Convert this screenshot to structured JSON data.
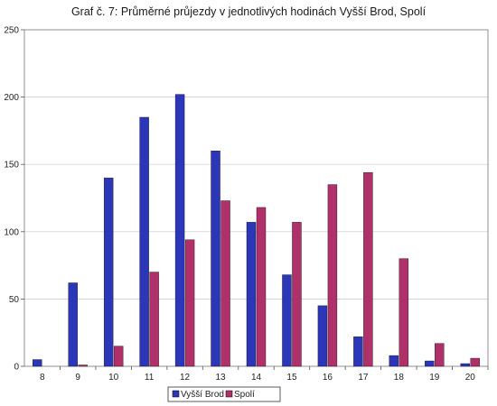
{
  "chart_data": {
    "type": "bar",
    "title": "Graf č. 7: Průměrné průjezdy v jednotlivých hodinách Vyšší Brod, Spolí",
    "xlabel": "",
    "ylabel": "",
    "categories": [
      "8",
      "9",
      "10",
      "11",
      "12",
      "13",
      "14",
      "15",
      "16",
      "17",
      "18",
      "19",
      "20"
    ],
    "series": [
      {
        "name": "Vyšší Brod",
        "color": "#2c36b8",
        "values": [
          5,
          62,
          140,
          185,
          202,
          160,
          107,
          68,
          45,
          22,
          8,
          4,
          2
        ]
      },
      {
        "name": "Spolí",
        "color": "#b0306a",
        "values": [
          0,
          1,
          15,
          70,
          94,
          123,
          118,
          107,
          135,
          144,
          80,
          17,
          6
        ]
      }
    ],
    "ylim": [
      0,
      250
    ],
    "yticks": [
      "0",
      "50",
      "100",
      "150",
      "200",
      "250"
    ],
    "grid": true,
    "legend": "bottom"
  }
}
